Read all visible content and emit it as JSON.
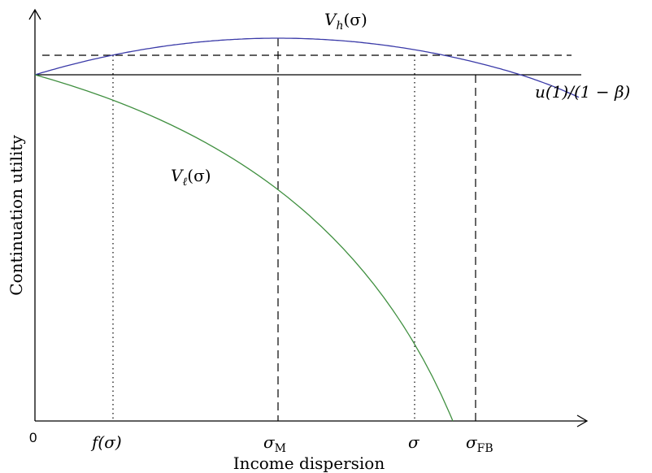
{
  "axes": {
    "x_label": "Income dispersion",
    "y_label": "Continuation utility",
    "origin_label": "0"
  },
  "ticks": {
    "f_sigma": {
      "base": "f",
      "arg": "(σ)"
    },
    "sigma_m": {
      "base": "σ",
      "sub": "M"
    },
    "sigma": {
      "base": "σ"
    },
    "sigma_fb": {
      "base": "σ",
      "sub": "FB"
    }
  },
  "curves": {
    "v_h": {
      "base": "V",
      "sub": "h",
      "arg": "(σ)",
      "color": "#3a3aa8"
    },
    "v_l": {
      "base": "V",
      "sub": "ℓ",
      "arg": "(σ)",
      "color": "#3f8f3f"
    }
  },
  "hline_label": "u(1)/(1 − β)"
}
